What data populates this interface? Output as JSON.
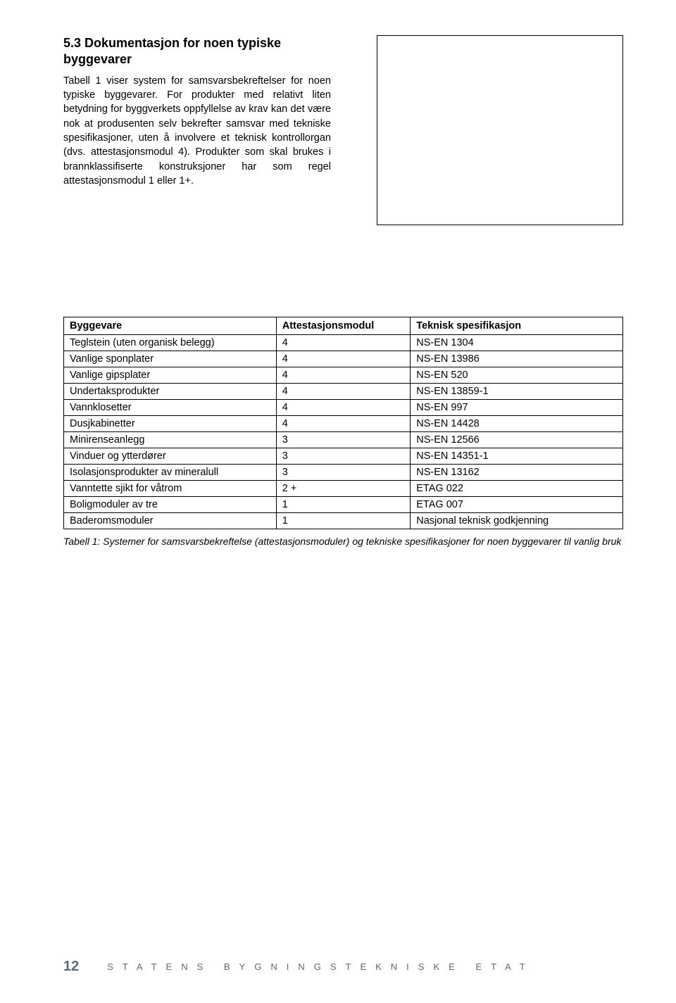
{
  "section": {
    "heading": "5.3 Dokumentasjon for noen typiske byggevarer",
    "paragraph": "Tabell 1 viser system for samsvarsbekreftelser for noen typiske byggevarer. For produkter med relativt liten betydning for byggverkets oppfyllelse av krav kan det være nok at produsenten selv bekrefter samsvar med tekniske spesifikasjoner, uten å involvere et teknisk kontrollorgan (dvs. attestasjonsmodul 4). Produkter som skal brukes i brannklassifiserte konstruksjoner har som regel attestasjonsmodul 1 eller 1+."
  },
  "table": {
    "headers": [
      "Byggevare",
      "Attestasjonsmodul",
      "Teknisk spesifikasjon"
    ],
    "rows": [
      [
        "Teglstein (uten organisk belegg)",
        "4",
        "NS-EN 1304"
      ],
      [
        "Vanlige sponplater",
        "4",
        "NS-EN 13986"
      ],
      [
        "Vanlige gipsplater",
        "4",
        "NS-EN 520"
      ],
      [
        "Undertaksprodukter",
        "4",
        "NS-EN 13859-1"
      ],
      [
        "Vannklosetter",
        "4",
        "NS-EN 997"
      ],
      [
        "Dusjkabinetter",
        "4",
        "NS-EN 14428"
      ],
      [
        "Minirenseanlegg",
        "3",
        "NS-EN 12566"
      ],
      [
        "Vinduer og ytterdører",
        "3",
        "NS-EN 14351-1"
      ],
      [
        "Isolasjonsprodukter av mineralull",
        "3",
        "NS-EN 13162"
      ],
      [
        "Vanntette sjikt for våtrom",
        "2 +",
        "ETAG 022"
      ],
      [
        "Boligmoduler av tre",
        "1",
        "ETAG 007"
      ],
      [
        "Baderomsmoduler",
        "1",
        "Nasjonal teknisk godkjenning"
      ]
    ],
    "caption": "Tabell 1: Systemer for samsvarsbekreftelse (attestasjonsmoduler) og tekniske spesifikasjoner for noen byggevarer til vanlig bruk"
  },
  "footer": {
    "page_number": "12",
    "organization": "STATENS BYGNINGSTEKNISKE ETAT"
  },
  "styles": {
    "page_bg": "#ffffff",
    "text_color": "#000000",
    "footer_color": "#5a6b7a",
    "border_color": "#000000"
  }
}
